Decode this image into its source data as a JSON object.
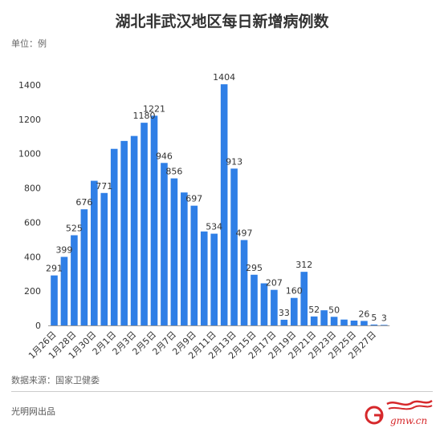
{
  "title": "湖北非武汉地区每日新增病例数",
  "unit_label": "单位：例",
  "source_label": "数据来源：国家卫健委",
  "publisher": "光明网出品",
  "logo": {
    "icon": "gmw-logo",
    "site": "gmw.cn",
    "mark": "光明网"
  },
  "colors": {
    "bar": "#2f7fe6",
    "axis": "#999999",
    "grid": "#e8e8e8",
    "text": "#333333"
  },
  "chart_data": {
    "type": "bar",
    "title": "湖北非武汉地区每日新增病例数",
    "ylabel": "单位：例",
    "xlabel": "",
    "ylim": [
      0,
      1400
    ],
    "yticks": [
      0,
      200,
      400,
      600,
      800,
      1000,
      1200,
      1400
    ],
    "grid": false,
    "categories": [
      "1月26日",
      "1月27日",
      "1月28日",
      "1月29日",
      "1月30日",
      "1月31日",
      "2月1日",
      "2月2日",
      "2月3日",
      "2月4日",
      "2月5日",
      "2月6日",
      "2月7日",
      "2月8日",
      "2月9日",
      "2月10日",
      "2月11日",
      "2月12日",
      "2月13日",
      "2月14日",
      "2月15日",
      "2月16日",
      "2月17日",
      "2月18日",
      "2月19日",
      "2月20日",
      "2月21日",
      "2月22日",
      "2月23日",
      "2月24日",
      "2月25日",
      "2月26日",
      "2月27日",
      "2月28日"
    ],
    "tick_labels": [
      "1月26日",
      "1月28日",
      "1月30日",
      "2月1日",
      "2月3日",
      "2月5日",
      "2月7日",
      "2月9日",
      "2月11日",
      "2月13日",
      "2月15日",
      "2月17日",
      "2月19日",
      "2月21日",
      "2月23日",
      "2月25日",
      "2月27日"
    ],
    "values": [
      291,
      399,
      525,
      676,
      842,
      771,
      1028,
      1074,
      1103,
      1180,
      1221,
      946,
      856,
      774,
      697,
      547,
      534,
      1404,
      913,
      497,
      295,
      245,
      207,
      33,
      160,
      312,
      52,
      88,
      50,
      34,
      28,
      26,
      5,
      3
    ],
    "labeled_indices": [
      0,
      1,
      2,
      3,
      5,
      9,
      10,
      11,
      12,
      14,
      16,
      17,
      18,
      19,
      20,
      22,
      23,
      24,
      25,
      26,
      28,
      31,
      32,
      33
    ]
  }
}
